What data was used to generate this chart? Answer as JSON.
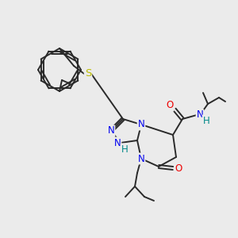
{
  "bg_color": "#ebebeb",
  "bond_color": "#2a2a2a",
  "bond_width": 1.4,
  "atom_colors": {
    "N": "#0000ee",
    "O": "#ee0000",
    "S": "#bbbb00",
    "H": "#008888",
    "C": "#2a2a2a"
  },
  "font_size": 8.5,
  "figsize": [
    3.0,
    3.0
  ],
  "dpi": 100
}
